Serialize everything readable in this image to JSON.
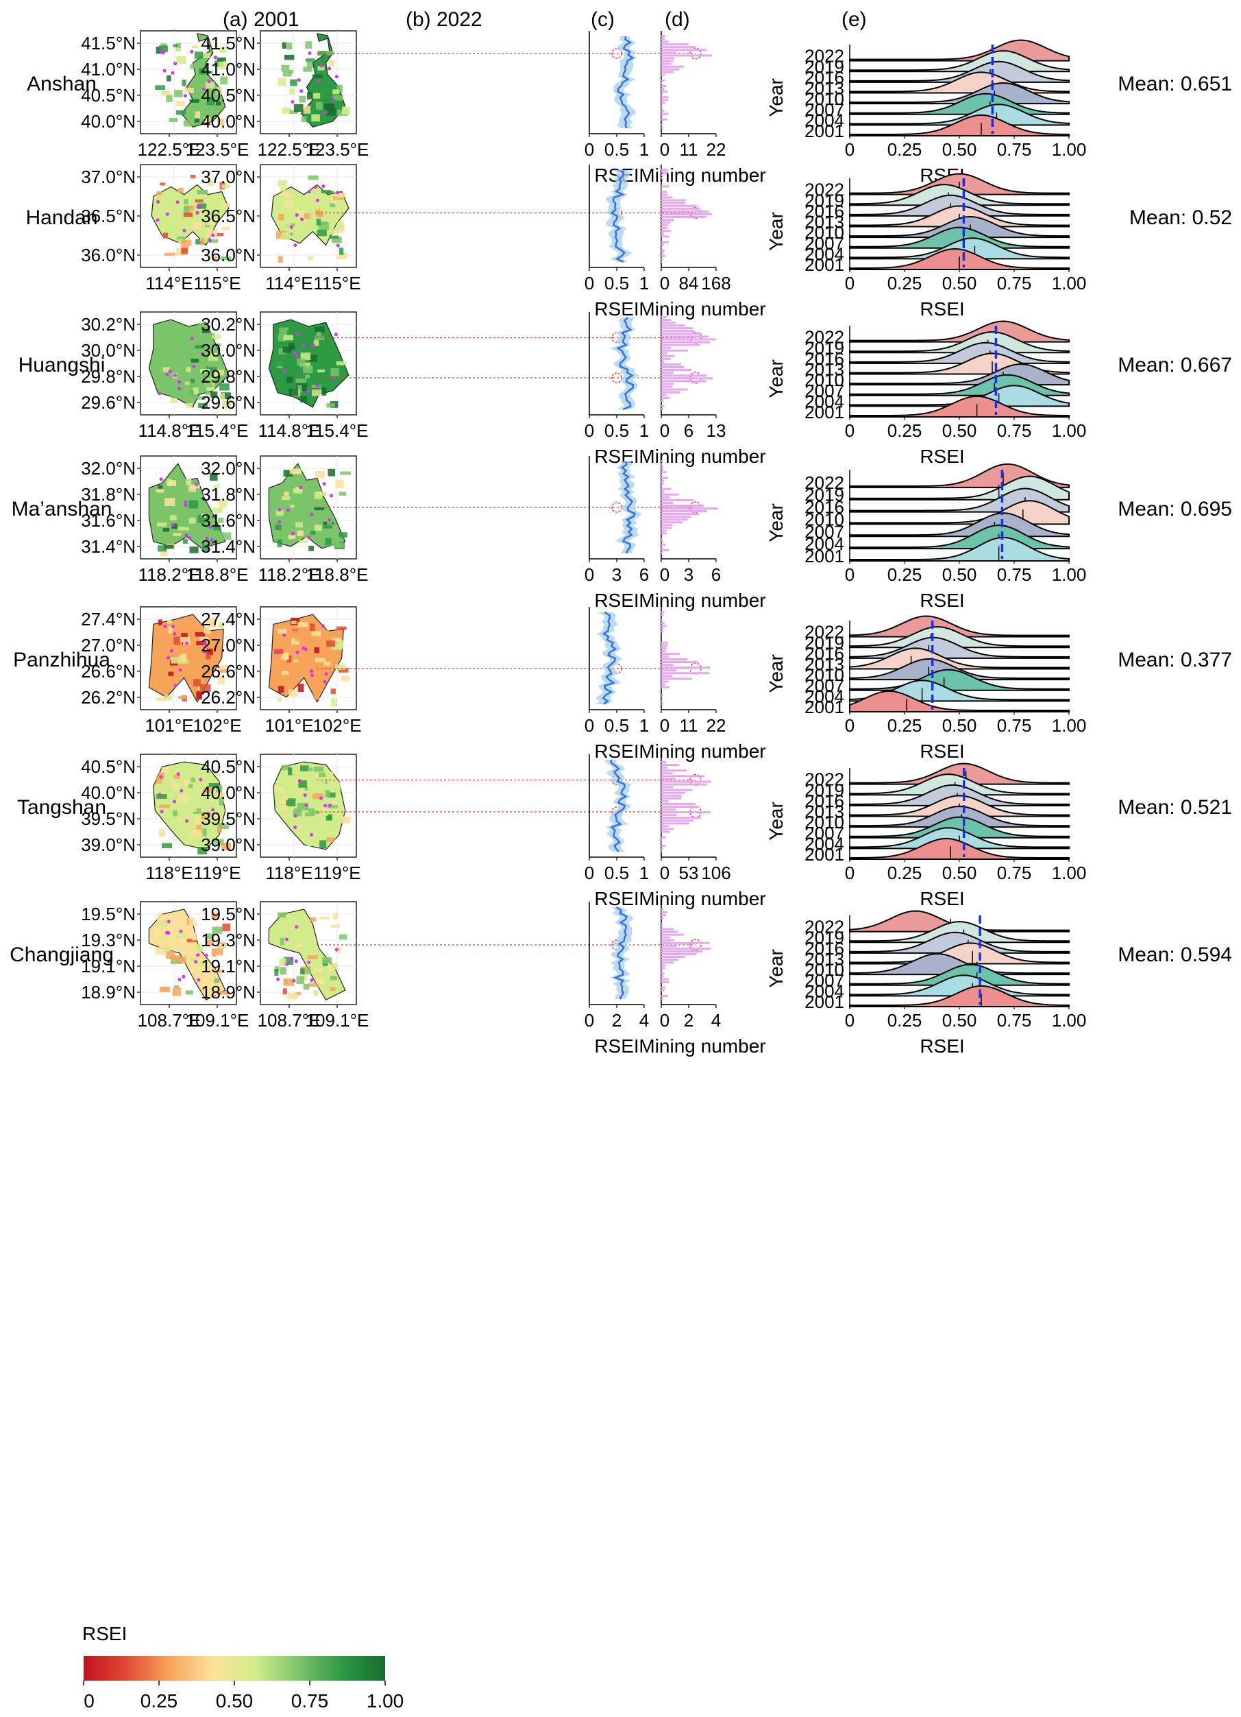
{
  "panel_labels": {
    "a": "(a) 2001",
    "b": "(b) 2022",
    "c": "(c)",
    "d": "(d)",
    "e": "(e)"
  },
  "axis_labels": {
    "rsei": "RSEI",
    "mining": "Mining number",
    "year": "Year"
  },
  "colors": {
    "rsei_ramp": [
      "#c1121f",
      "#e34a33",
      "#f7a45a",
      "#fde19a",
      "#d3ec8b",
      "#7cc46a",
      "#2d9a44",
      "#146c2e"
    ],
    "mining_overlay": "#d633f2",
    "marker": "#ee3a3a",
    "mean_line": "#1530f2",
    "rsei_profile": "#3a6fe0",
    "rsei_profile_band": "#a9d3ea",
    "mining_bar": "#e6a6f2",
    "ridge_fills": [
      "#ea9a99",
      "#cfe7df",
      "#c2cbdc",
      "#f6d3c8",
      "#a8b3cb",
      "#6cc3ac",
      "#a9dde3",
      "#ec8f8e"
    ]
  },
  "legend": {
    "title": "RSEI",
    "ticks": [
      "0",
      "0.25",
      "0.50",
      "0.75",
      "1.00"
    ]
  },
  "chart_data": [
    {
      "type": "area",
      "city": "Anshan",
      "lat_ticks": [
        "41.5°N",
        "41.0°N",
        "40.5°N",
        "40.0°N"
      ],
      "lon_ticks": [
        "122.5°E",
        "123.5°E"
      ],
      "rsei_ticks": [
        "0",
        "0.5",
        "1"
      ],
      "mining_ticks": [
        "0",
        "11",
        "22"
      ],
      "mining_max": 22,
      "ridge_years": [
        "2022",
        "2019",
        "2016",
        "2013",
        "2010",
        "2007",
        "2004",
        "2001"
      ],
      "ridge_xticks": [
        "0",
        "0.25",
        "0.50",
        "0.75",
        "1.00"
      ],
      "ridge_peaks": [
        0.78,
        0.7,
        0.68,
        0.6,
        0.7,
        0.62,
        0.68,
        0.6
      ],
      "ridge_means": [
        0.65,
        0.65,
        0.64,
        0.65,
        0.66,
        0.64,
        0.67,
        0.6
      ],
      "mean_value": 0.651,
      "mean_label": "Mean: 0.651",
      "hotspots": [
        0.22
      ]
    },
    {
      "type": "area",
      "city": "Handan",
      "lat_ticks": [
        "37.0°N",
        "36.5°N",
        "36.0°N"
      ],
      "lon_ticks": [
        "114°E",
        "115°E"
      ],
      "rsei_ticks": [
        "0",
        "0.5",
        "1"
      ],
      "mining_ticks": [
        "0",
        "84",
        "168"
      ],
      "mining_max": 168,
      "ridge_years": [
        "2022",
        "2019",
        "2016",
        "2013",
        "2010",
        "2007",
        "2004",
        "2001"
      ],
      "ridge_xticks": [
        "0",
        "0.25",
        "0.50",
        "0.75",
        "1.00"
      ],
      "ridge_peaks": [
        0.5,
        0.43,
        0.46,
        0.5,
        0.55,
        0.5,
        0.56,
        0.48
      ],
      "ridge_means": [
        0.5,
        0.45,
        0.46,
        0.5,
        0.55,
        0.52,
        0.57,
        0.5
      ],
      "mean_value": 0.52,
      "mean_label": "Mean: 0.52",
      "hotspots": [
        0.47
      ]
    },
    {
      "type": "area",
      "city": "Huangshi",
      "lat_ticks": [
        "30.2°N",
        "30.0°N",
        "29.8°N",
        "29.6°N"
      ],
      "lon_ticks": [
        "114.8°E",
        "115.4°E"
      ],
      "rsei_ticks": [
        "0",
        "0.5",
        "1"
      ],
      "mining_ticks": [
        "0",
        "6",
        "13"
      ],
      "mining_max": 13,
      "ridge_years": [
        "2022",
        "2019",
        "2016",
        "2013",
        "2010",
        "2007",
        "2004",
        "2001"
      ],
      "ridge_xticks": [
        "0",
        "0.25",
        "0.50",
        "0.75",
        "1.00"
      ],
      "ridge_peaks": [
        0.7,
        0.65,
        0.62,
        0.65,
        0.78,
        0.72,
        0.75,
        0.58
      ],
      "ridge_means": [
        0.67,
        0.63,
        0.64,
        0.65,
        0.7,
        0.66,
        0.68,
        0.58
      ],
      "mean_value": 0.667,
      "mean_label": "Mean: 0.667",
      "hotspots": [
        0.25,
        0.64
      ]
    },
    {
      "type": "area",
      "city": "Ma’anshan",
      "lat_ticks": [
        "32.0°N",
        "31.8°N",
        "31.6°N",
        "31.4°N"
      ],
      "lon_ticks": [
        "118.2°E",
        "118.8°E"
      ],
      "rsei_ticks": [
        "0",
        "3",
        "6"
      ],
      "mining_ticks": [
        "0",
        "3",
        "6"
      ],
      "mining_max": 6,
      "ridge_years": [
        "2022",
        "2019",
        "2016",
        "2010",
        "2007",
        "2004",
        "2001"
      ],
      "ridge_xticks": [
        "0",
        "0.25",
        "0.50",
        "0.75",
        "1.00"
      ],
      "ridge_peaks": [
        0.72,
        0.82,
        0.8,
        0.82,
        0.7,
        0.68,
        0.7
      ],
      "ridge_means": [
        0.7,
        0.68,
        0.8,
        0.79,
        0.66,
        0.68,
        0.68
      ],
      "mean_value": 0.695,
      "mean_label": "Mean: 0.695",
      "hotspots": [
        0.5
      ]
    },
    {
      "type": "area",
      "city": "Panzhihua",
      "lat_ticks": [
        "27.4°N",
        "27.0°N",
        "26.6°N",
        "26.2°N"
      ],
      "lon_ticks": [
        "101°E",
        "102°E"
      ],
      "rsei_ticks": [
        "0",
        "0.5",
        "1"
      ],
      "mining_ticks": [
        "0",
        "11",
        "22"
      ],
      "mining_max": 22,
      "ridge_years": [
        "2022",
        "2019",
        "2016",
        "2013",
        "2010",
        "2007",
        "2004",
        "2001"
      ],
      "ridge_xticks": [
        "0",
        "0.25",
        "0.50",
        "0.75",
        "1.00"
      ],
      "ridge_peaks": [
        0.35,
        0.4,
        0.38,
        0.3,
        0.36,
        0.45,
        0.33,
        0.18
      ],
      "ridge_means": [
        0.38,
        0.37,
        0.36,
        0.28,
        0.36,
        0.43,
        0.33,
        0.26
      ],
      "mean_value": 0.377,
      "mean_label": "Mean: 0.377",
      "hotspots": [
        0.6
      ]
    },
    {
      "type": "area",
      "city": "Tangshan",
      "lat_ticks": [
        "40.5°N",
        "40.0°N",
        "39.5°N",
        "39.0°N"
      ],
      "lon_ticks": [
        "118°E",
        "119°E"
      ],
      "rsei_ticks": [
        "0",
        "0.5",
        "1"
      ],
      "mining_ticks": [
        "0",
        "53",
        "106"
      ],
      "mining_max": 106,
      "ridge_years": [
        "2022",
        "2019",
        "2016",
        "2013",
        "2010",
        "2007",
        "2004",
        "2001"
      ],
      "ridge_xticks": [
        "0",
        "0.25",
        "0.50",
        "0.75",
        "1.00"
      ],
      "ridge_peaks": [
        0.52,
        0.45,
        0.47,
        0.5,
        0.5,
        0.5,
        0.45,
        0.44
      ],
      "ridge_means": [
        0.53,
        0.48,
        0.49,
        0.5,
        0.51,
        0.52,
        0.5,
        0.46
      ],
      "mean_value": 0.521,
      "mean_label": "Mean: 0.521",
      "hotspots": [
        0.25,
        0.56
      ]
    },
    {
      "type": "area",
      "city": "Changjiang",
      "lat_ticks": [
        "19.5°N",
        "19.3°N",
        "19.1°N",
        "18.9°N"
      ],
      "lon_ticks": [
        "108.7°E",
        "109.1°E"
      ],
      "rsei_ticks": [
        "0",
        "2",
        "4"
      ],
      "mining_ticks": [
        "0",
        "2",
        "4"
      ],
      "mining_max": 4,
      "ridge_years": [
        "2022",
        "2019",
        "2016",
        "2013",
        "2010",
        "2007",
        "2004",
        "2001"
      ],
      "ridge_xticks": [
        "0",
        "0.25",
        "0.50",
        "0.75",
        "1.00"
      ],
      "ridge_peaks": [
        0.3,
        0.5,
        0.48,
        0.55,
        0.4,
        0.55,
        0.52,
        0.6
      ],
      "ridge_means": [
        0.46,
        0.52,
        0.54,
        0.56,
        0.58,
        0.58,
        0.56,
        0.6
      ],
      "mean_value": 0.594,
      "mean_label": "Mean: 0.594",
      "hotspots": [
        0.42
      ]
    }
  ]
}
